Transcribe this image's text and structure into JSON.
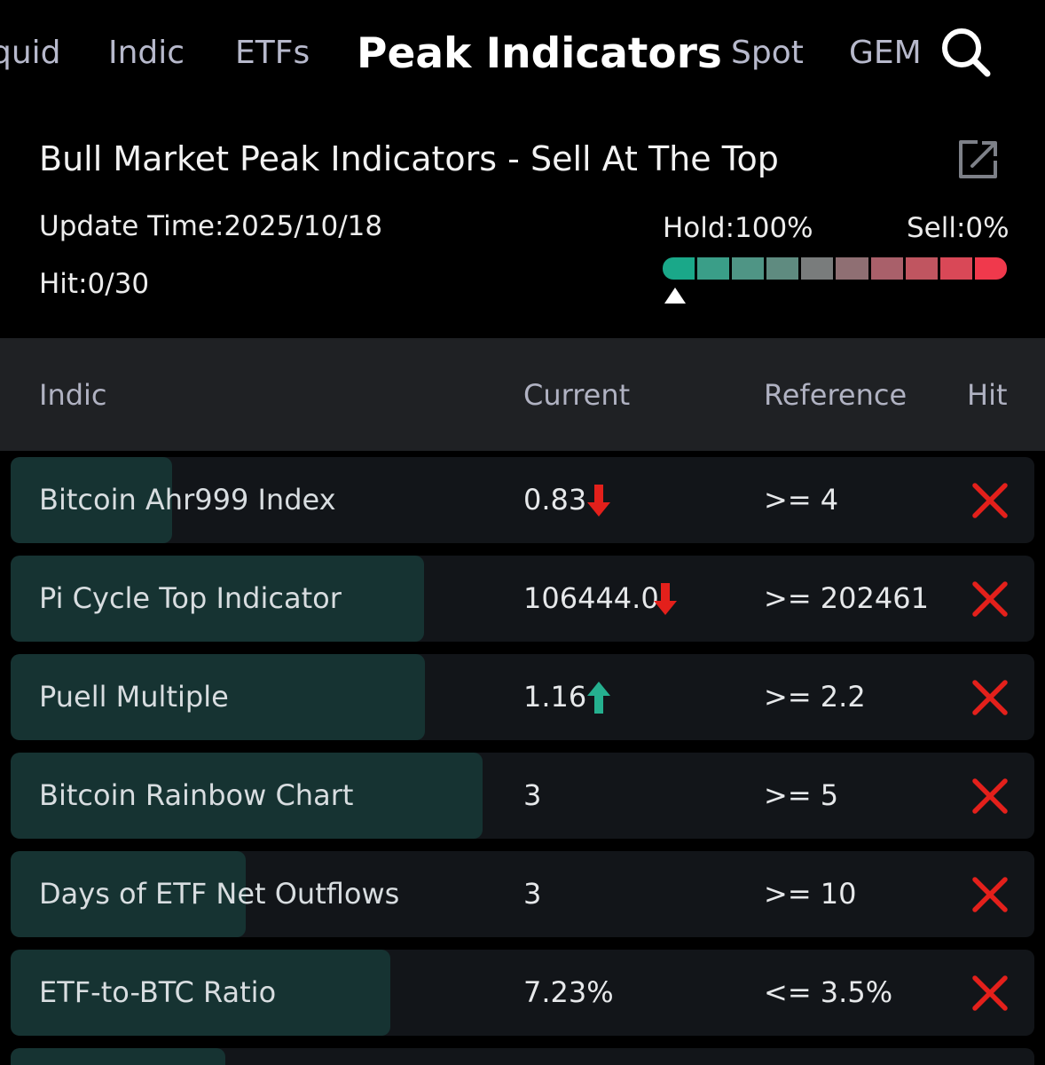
{
  "nav": {
    "tabs": [
      {
        "label": "quid"
      },
      {
        "label": "Indic"
      },
      {
        "label": "ETFs"
      },
      {
        "label": "Peak Indicators"
      },
      {
        "label": "Spot"
      },
      {
        "label": "GEM"
      }
    ],
    "active_tab": "Peak Indicators",
    "search_icon": "search-icon"
  },
  "header": {
    "title": "Bull Market Peak Indicators - Sell At The Top",
    "share_icon": "share-icon",
    "update_time": "Update Time:2025/10/18",
    "hit_count": "Hit:0/30",
    "hold_label": "Hold:100%",
    "sell_label": "Sell:0%",
    "hold_level": 1.0,
    "gauge_colors": [
      "#1aa889",
      "#3a9e88",
      "#4f9585",
      "#5f8b80",
      "#797c7c",
      "#8f6f73",
      "#a9606a",
      "#c05560",
      "#d94857",
      "#f0394c"
    ]
  },
  "table": {
    "columns": {
      "indic": "Indic",
      "current": "Current",
      "reference": "Reference",
      "hit": "Hit"
    },
    "rows": [
      {
        "name": "Bitcoin Ahr999 Index",
        "current": "0.83",
        "trend": "down",
        "reference": ">= 4",
        "hit": false,
        "progress": 0.158
      },
      {
        "name": "Pi Cycle Top Indicator",
        "current": "106444.0",
        "trend": "down",
        "reference": ">= 202461",
        "hit": false,
        "progress": 0.404
      },
      {
        "name": "Puell Multiple",
        "current": "1.16",
        "trend": "up",
        "reference": ">= 2.2",
        "hit": false,
        "progress": 0.405
      },
      {
        "name": "Bitcoin Rainbow Chart",
        "current": "3",
        "trend": "none",
        "reference": ">= 5",
        "hit": false,
        "progress": 0.461
      },
      {
        "name": "Days of ETF Net Outflows",
        "current": "3",
        "trend": "none",
        "reference": ">= 10",
        "hit": false,
        "progress": 0.23
      },
      {
        "name": "ETF-to-BTC Ratio",
        "current": "7.23%",
        "trend": "none",
        "reference": "<= 3.5%",
        "hit": false,
        "progress": 0.371
      }
    ],
    "colors": {
      "down": "#e3201b",
      "up": "#25b08f",
      "miss": "#e3201b"
    }
  }
}
